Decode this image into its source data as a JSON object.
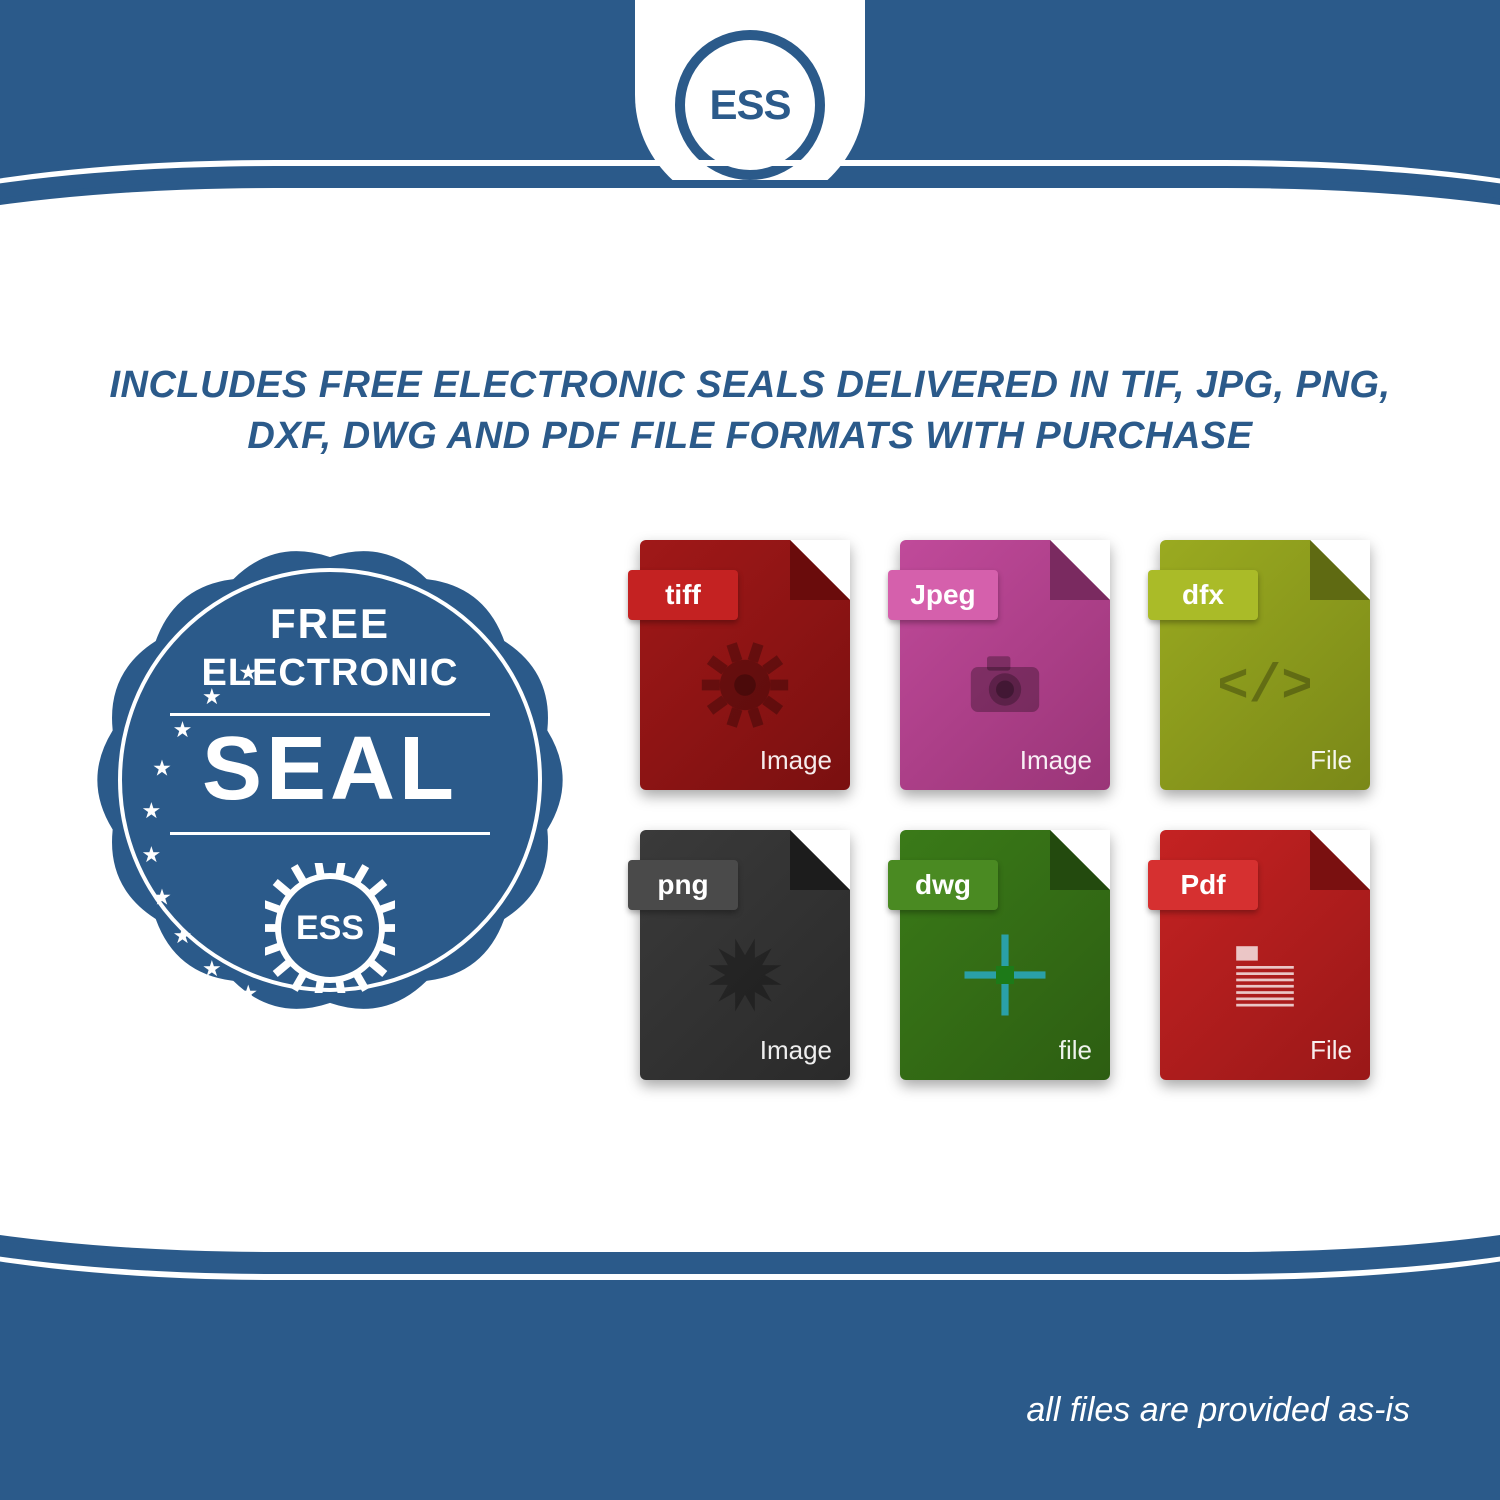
{
  "colors": {
    "brand_blue": "#2b5a8a",
    "white": "#ffffff"
  },
  "logo": {
    "text": "ESS"
  },
  "headline": "INCLUDES FREE ELECTRONIC SEALS DELIVERED IN TIF, JPG, PNG, DXF, DWG AND PDF FILE FORMATS WITH PURCHASE",
  "seal_badge": {
    "line1": "FREE",
    "line2": "ELECTRONIC",
    "line3": "SEAL",
    "gear_text": "ESS",
    "star_count": 10,
    "fill_color": "#2b5a8a",
    "text_color": "#ffffff"
  },
  "file_icons": [
    {
      "tab_label": "tiff",
      "footer": "Image",
      "body_color": "#a01818",
      "body_dark": "#7a1010",
      "tab_color": "#c42222",
      "fold_color": "#6a0c0c",
      "glyph": "gear"
    },
    {
      "tab_label": "Jpeg",
      "footer": "Image",
      "body_color": "#c04a9a",
      "body_dark": "#9a3578",
      "tab_color": "#d560ac",
      "fold_color": "#7a2a60",
      "glyph": "camera"
    },
    {
      "tab_label": "dfx",
      "footer": "File",
      "body_color": "#9aaa20",
      "body_dark": "#7a8818",
      "tab_color": "#aabb28",
      "fold_color": "#5f6a12",
      "glyph": "code"
    },
    {
      "tab_label": "png",
      "footer": "Image",
      "body_color": "#3a3a3a",
      "body_dark": "#2a2a2a",
      "tab_color": "#4a4a4a",
      "fold_color": "#1c1c1c",
      "glyph": "starburst"
    },
    {
      "tab_label": "dwg",
      "footer": "file",
      "body_color": "#3a7a18",
      "body_dark": "#2d5e12",
      "tab_color": "#4a8a22",
      "fold_color": "#234a0e",
      "glyph": "crosshair"
    },
    {
      "tab_label": "Pdf",
      "footer": "File",
      "body_color": "#c42222",
      "body_dark": "#9a1818",
      "tab_color": "#d63030",
      "fold_color": "#7a1010",
      "glyph": "doc"
    }
  ],
  "footer_note": "all files are provided as-is"
}
